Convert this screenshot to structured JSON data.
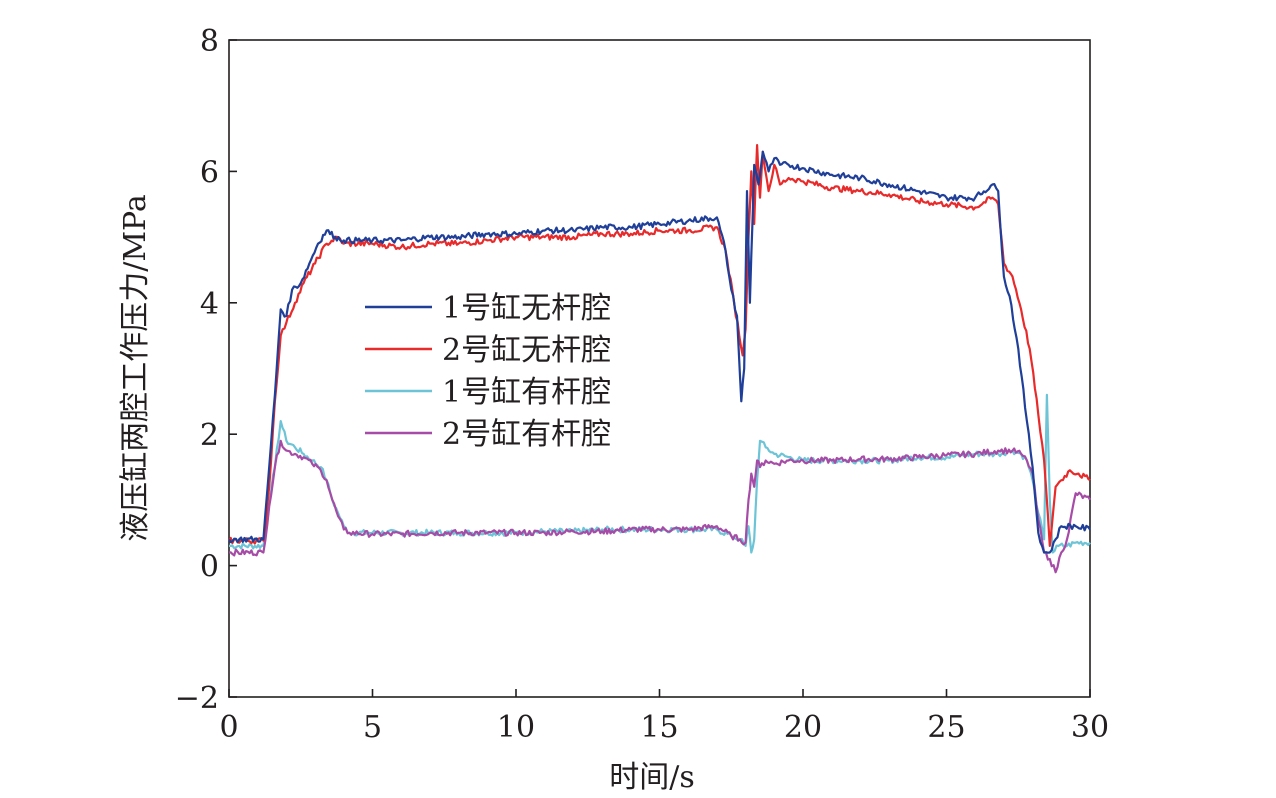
{
  "chart_data": {
    "type": "line",
    "xlabel": "时间/s",
    "ylabel": "液压缸两腔工作压力/MPa",
    "xlim": [
      0,
      30
    ],
    "ylim": [
      -2,
      8
    ],
    "xticks": [
      0,
      5,
      10,
      15,
      20,
      25,
      30
    ],
    "yticks": [
      -2,
      0,
      2,
      4,
      6,
      8
    ],
    "xtick_labels": [
      "0",
      "5",
      "10",
      "15",
      "20",
      "25",
      "30"
    ],
    "ytick_labels": [
      "−2",
      "0",
      "2",
      "4",
      "6",
      "8"
    ],
    "grid": false,
    "legend_position": "center-left",
    "series": [
      {
        "name": "1号缸无杆腔",
        "color": "#1f3f99",
        "x": [
          0,
          1.2,
          1.4,
          1.6,
          1.8,
          2.0,
          2.2,
          2.5,
          2.8,
          3.1,
          3.4,
          3.7,
          4,
          5,
          6,
          7,
          8,
          9,
          10,
          11,
          12,
          13,
          14,
          15,
          16,
          17,
          17.3,
          17.5,
          17.7,
          17.85,
          17.95,
          18.05,
          18.15,
          18.3,
          18.45,
          18.6,
          18.8,
          19,
          19.2,
          19.5,
          20,
          21,
          22,
          23,
          24,
          25,
          26,
          26.6,
          26.8,
          27,
          27.2,
          27.5,
          27.8,
          28,
          28.2,
          28.4,
          28.6,
          28.8,
          29,
          29.5,
          30
        ],
        "y": [
          0.4,
          0.4,
          1.5,
          2.6,
          3.9,
          3.8,
          4.2,
          4.3,
          4.6,
          4.9,
          5.1,
          5.0,
          4.95,
          4.95,
          4.95,
          5.0,
          5.0,
          5.05,
          5.05,
          5.1,
          5.1,
          5.15,
          5.15,
          5.2,
          5.25,
          5.3,
          4.8,
          4.2,
          3.8,
          2.5,
          3.0,
          5.7,
          4.0,
          6.1,
          5.8,
          6.3,
          6.0,
          6.2,
          6.1,
          6.1,
          6.05,
          5.95,
          5.9,
          5.8,
          5.7,
          5.6,
          5.6,
          5.8,
          5.7,
          4.4,
          4.1,
          3.3,
          2.2,
          1.5,
          0.5,
          0.2,
          0.2,
          0.4,
          0.6,
          0.6,
          0.55
        ]
      },
      {
        "name": "2号缸无杆腔",
        "color": "#e82a2a",
        "x": [
          0,
          1.2,
          1.4,
          1.6,
          1.8,
          2.0,
          2.3,
          2.6,
          3.0,
          3.4,
          3.8,
          4,
          5,
          6,
          7,
          8,
          9,
          10,
          11,
          12,
          13,
          14,
          15,
          16,
          17,
          17.3,
          17.6,
          17.9,
          18.0,
          18.1,
          18.2,
          18.3,
          18.4,
          18.5,
          18.6,
          18.8,
          19,
          19.2,
          19.5,
          20,
          21,
          22,
          23,
          24,
          25,
          26,
          26.6,
          26.8,
          27,
          27.3,
          27.6,
          27.9,
          28.2,
          28.4,
          28.6,
          28.8,
          29,
          29.3,
          29.6,
          30
        ],
        "y": [
          0.38,
          0.38,
          1.2,
          2.5,
          3.5,
          3.7,
          4.0,
          4.3,
          4.6,
          4.9,
          5.0,
          4.9,
          4.9,
          4.85,
          4.9,
          4.9,
          4.95,
          5.0,
          5.0,
          5.0,
          5.05,
          5.05,
          5.1,
          5.1,
          5.15,
          4.8,
          4.0,
          3.2,
          3.6,
          5.0,
          6.0,
          5.2,
          6.4,
          5.6,
          6.3,
          5.7,
          6.1,
          5.8,
          5.9,
          5.85,
          5.75,
          5.7,
          5.65,
          5.55,
          5.5,
          5.45,
          5.6,
          5.5,
          4.6,
          4.4,
          3.9,
          3.3,
          2.3,
          1.6,
          0.3,
          1.2,
          1.3,
          1.45,
          1.4,
          1.3
        ]
      },
      {
        "name": "1号缸有杆腔",
        "color": "#6cc4d6",
        "x": [
          0,
          1.2,
          1.4,
          1.6,
          1.8,
          2.0,
          2.3,
          2.6,
          2.9,
          3.2,
          3.4,
          3.6,
          3.8,
          4.0,
          4.2,
          5,
          6,
          7,
          8,
          9,
          10,
          11,
          12,
          13,
          14,
          15,
          16,
          17,
          17.5,
          17.8,
          18.0,
          18.1,
          18.2,
          18.3,
          18.4,
          18.5,
          18.7,
          19,
          19.5,
          20,
          21,
          22,
          23,
          24,
          25,
          26,
          26.8,
          27.3,
          27.6,
          27.8,
          28.0,
          28.2,
          28.4,
          28.5,
          28.6,
          28.7,
          28.9,
          29.2,
          29.5,
          30
        ],
        "y": [
          0.3,
          0.3,
          1.0,
          1.5,
          2.2,
          1.9,
          1.8,
          1.7,
          1.6,
          1.5,
          1.3,
          1.0,
          0.8,
          0.6,
          0.5,
          0.5,
          0.5,
          0.5,
          0.5,
          0.5,
          0.5,
          0.52,
          0.52,
          0.55,
          0.55,
          0.55,
          0.55,
          0.55,
          0.45,
          0.4,
          0.3,
          0.6,
          0.2,
          0.4,
          1.3,
          1.9,
          1.8,
          1.7,
          1.65,
          1.6,
          1.6,
          1.6,
          1.6,
          1.65,
          1.65,
          1.7,
          1.7,
          1.75,
          1.7,
          1.6,
          1.3,
          0.8,
          0.4,
          2.6,
          1.0,
          0.2,
          0.3,
          0.3,
          0.35,
          0.35
        ]
      },
      {
        "name": "2号缸有杆腔",
        "color": "#a64ca6",
        "x": [
          0,
          1.2,
          1.4,
          1.6,
          1.8,
          2.0,
          2.3,
          2.6,
          2.9,
          3.2,
          3.4,
          3.6,
          3.8,
          4.0,
          4.2,
          5,
          6,
          7,
          8,
          9,
          10,
          11,
          12,
          13,
          14,
          15,
          16,
          17,
          17.5,
          17.8,
          18.0,
          18.1,
          18.2,
          18.3,
          18.4,
          18.5,
          18.7,
          19,
          19.5,
          20,
          21,
          22,
          23,
          24,
          25,
          26,
          26.8,
          27.3,
          27.6,
          27.8,
          28.0,
          28.2,
          28.4,
          28.6,
          28.8,
          29.0,
          29.2,
          29.5,
          30
        ],
        "y": [
          0.2,
          0.2,
          0.9,
          1.5,
          1.9,
          1.75,
          1.7,
          1.65,
          1.55,
          1.45,
          1.3,
          1.0,
          0.75,
          0.55,
          0.5,
          0.48,
          0.48,
          0.5,
          0.5,
          0.5,
          0.5,
          0.5,
          0.52,
          0.52,
          0.55,
          0.55,
          0.55,
          0.6,
          0.45,
          0.4,
          0.35,
          1.0,
          1.4,
          1.2,
          1.6,
          1.5,
          1.6,
          1.55,
          1.6,
          1.6,
          1.6,
          1.62,
          1.62,
          1.65,
          1.68,
          1.7,
          1.75,
          1.75,
          1.7,
          1.6,
          1.4,
          0.7,
          0.2,
          0.1,
          -0.1,
          0.2,
          0.4,
          1.1,
          1.0
        ]
      }
    ]
  }
}
